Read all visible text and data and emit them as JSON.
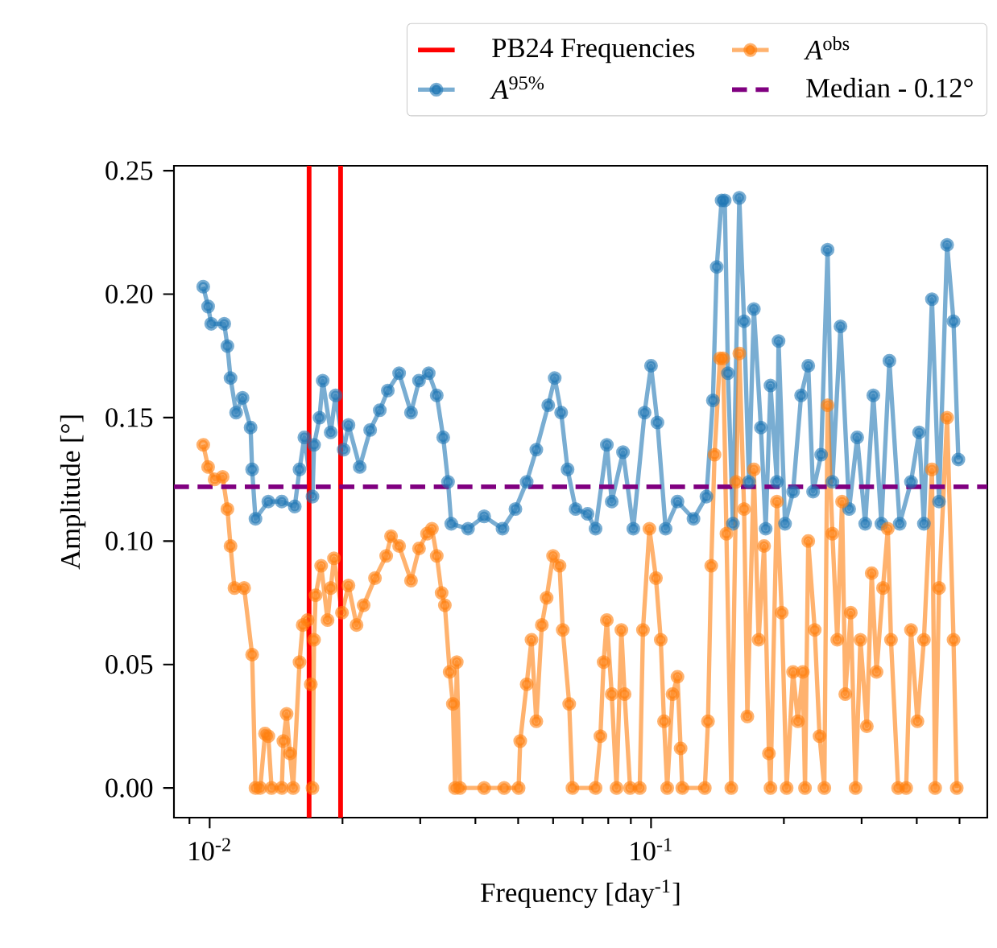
{
  "chart_data": {
    "type": "line",
    "xlabel": "Frequency [day$^{-1}$]",
    "ylabel": "Amplitude [°]",
    "log": "x",
    "marker": "circle",
    "line_style": "solid",
    "legend": "top",
    "xlim": [
      0.0083,
      0.578
    ],
    "ylim": [
      -0.012,
      0.252
    ],
    "xticks": [
      {
        "value": 0.01,
        "label": "10$^{-2}$"
      },
      {
        "value": 0.1,
        "label": "10$^{-1}$"
      }
    ],
    "yticks": [
      {
        "value": 0,
        "label": "0.00"
      },
      0.05,
      {
        "value": 0.1,
        "label": "0.10"
      },
      0.15,
      {
        "value": 0.2,
        "label": "0.20"
      },
      0.25
    ],
    "series": [
      {
        "name": "*A*$^{95%}$",
        "color": "#1f77b4",
        "x": [
          0.00967,
          0.00992,
          0.01008,
          0.01079,
          0.01097,
          0.01115,
          0.01148,
          0.01187,
          0.01238,
          0.01248,
          0.0127,
          0.01358,
          0.01457,
          0.01559,
          0.01598,
          0.01639,
          0.0171,
          0.01724,
          0.01774,
          0.01804,
          0.01881,
          0.01929,
          0.02012,
          0.02063,
          0.02188,
          0.0231,
          0.02429,
          0.02533,
          0.02687,
          0.02859,
          0.02981,
          0.03136,
          0.0327,
          0.03382,
          0.03468,
          0.03527,
          0.03849,
          0.04187,
          0.04608,
          0.04929,
          0.05227,
          0.05497,
          0.0585,
          0.06051,
          0.06257,
          0.06471,
          0.06749,
          0.07181,
          0.07489,
          0.07943,
          0.08146,
          0.0864,
          0.09117,
          0.09669,
          0.1,
          0.1034,
          0.1079,
          0.1148,
          0.1248,
          0.1335,
          0.1381,
          0.1409,
          0.1445,
          0.1469,
          0.1494,
          0.1533,
          0.1585,
          0.1625,
          0.1667,
          0.171,
          0.1774,
          0.1819,
          0.1865,
          0.1929,
          0.1945,
          0.2012,
          0.2098,
          0.2188,
          0.2271,
          0.2329,
          0.2429,
          0.2512,
          0.2576,
          0.2687,
          0.2811,
          0.2932,
          0.3057,
          0.3189,
          0.3326,
          0.3468,
          0.366,
          0.3882,
          0.4049,
          0.4152,
          0.433,
          0.4493,
          0.4686,
          0.4846,
          0.497
        ],
        "values": [
          0.203,
          0.195,
          0.188,
          0.188,
          0.179,
          0.166,
          0.152,
          0.158,
          0.146,
          0.129,
          0.109,
          0.116,
          0.116,
          0.114,
          0.129,
          0.142,
          0.118,
          0.139,
          0.15,
          0.165,
          0.144,
          0.159,
          0.137,
          0.147,
          0.13,
          0.145,
          0.153,
          0.161,
          0.168,
          0.152,
          0.165,
          0.168,
          0.159,
          0.142,
          0.124,
          0.107,
          0.105,
          0.11,
          0.105,
          0.113,
          0.124,
          0.137,
          0.155,
          0.166,
          0.152,
          0.129,
          0.113,
          0.111,
          0.105,
          0.139,
          0.116,
          0.136,
          0.105,
          0.152,
          0.171,
          0.148,
          0.105,
          0.116,
          0.109,
          0.118,
          0.157,
          0.211,
          0.238,
          0.238,
          0.168,
          0.107,
          0.239,
          0.189,
          0.124,
          0.194,
          0.146,
          0.105,
          0.163,
          0.124,
          0.181,
          0.107,
          0.12,
          0.159,
          0.171,
          0.12,
          0.135,
          0.218,
          0.124,
          0.187,
          0.113,
          0.142,
          0.107,
          0.159,
          0.107,
          0.173,
          0.107,
          0.124,
          0.144,
          0.107,
          0.198,
          0.116,
          0.22,
          0.189,
          0.133
        ]
      },
      {
        "name": "*A*$^{obs}$",
        "color": "#ff7f0e",
        "x": [
          0.00967,
          0.00992,
          0.01026,
          0.0107,
          0.01097,
          0.01115,
          0.01138,
          0.01197,
          0.01248,
          0.0127,
          0.01302,
          0.01335,
          0.01358,
          0.01381,
          0.01457,
          0.01469,
          0.01494,
          0.0152,
          0.01546,
          0.01598,
          0.01625,
          0.01667,
          0.01695,
          0.0171,
          0.01724,
          0.01738,
          0.01789,
          0.0185,
          0.01881,
          0.01913,
          0.01995,
          0.02063,
          0.02152,
          0.02233,
          0.02369,
          0.02512,
          0.02576,
          0.02687,
          0.02859,
          0.02981,
          0.03109,
          0.03189,
          0.0327,
          0.03354,
          0.03411,
          0.03498,
          0.03557,
          0.03599,
          0.0363,
          0.03691,
          0.04187,
          0.04648,
          0.05012,
          0.05054,
          0.05227,
          0.0536,
          0.05497,
          0.05657,
          0.05801,
          0.05999,
          0.06205,
          0.0631,
          0.06526,
          0.06636,
          0.07489,
          0.0768,
          0.0781,
          0.07943,
          0.08146,
          0.08354,
          0.08567,
          0.08712,
          0.08965,
          0.09429,
          0.09589,
          0.09916,
          0.1026,
          0.1052,
          0.107,
          0.1088,
          0.1119,
          0.1148,
          0.1167,
          0.1177,
          0.1324,
          0.1346,
          0.1369,
          0.1393,
          0.1433,
          0.1457,
          0.1482,
          0.152,
          0.1559,
          0.1585,
          0.1625,
          0.1653,
          0.171,
          0.1753,
          0.1804,
          0.185,
          0.1865,
          0.1929,
          0.1978,
          0.2029,
          0.2098,
          0.2152,
          0.2207,
          0.2233,
          0.2271,
          0.2349,
          0.2409,
          0.247,
          0.2512,
          0.2576,
          0.2642,
          0.2709,
          0.2755,
          0.2835,
          0.2907,
          0.2981,
          0.3083,
          0.3162,
          0.3243,
          0.3354,
          0.3439,
          0.3497,
          0.363,
          0.3785,
          0.3882,
          0.4014,
          0.4152,
          0.433,
          0.4403,
          0.4493,
          0.4686,
          0.4846,
          0.4928
        ],
        "values": [
          0.139,
          0.13,
          0.125,
          0.126,
          0.113,
          0.098,
          0.081,
          0.081,
          0.054,
          0,
          0,
          0.022,
          0.021,
          0,
          0,
          0.019,
          0.03,
          0.014,
          0,
          0.051,
          0.066,
          0.068,
          0.042,
          0,
          0.06,
          0.078,
          0.09,
          0.068,
          0.081,
          0.093,
          0.071,
          0.082,
          0.066,
          0.074,
          0.085,
          0.094,
          0.102,
          0.098,
          0.084,
          0.097,
          0.103,
          0.105,
          0.094,
          0.079,
          0.074,
          0.047,
          0.034,
          0,
          0.051,
          0,
          0,
          0,
          0,
          0.019,
          0.042,
          0.06,
          0.027,
          0.066,
          0.077,
          0.094,
          0.09,
          0.064,
          0.034,
          0,
          0,
          0.021,
          0.051,
          0.068,
          0.038,
          0,
          0.064,
          0.038,
          0,
          0,
          0.064,
          0.105,
          0.085,
          0.06,
          0.027,
          0,
          0.038,
          0.045,
          0.016,
          0,
          0,
          0.027,
          0.09,
          0.135,
          0.174,
          0.174,
          0.103,
          0,
          0.124,
          0.176,
          0.113,
          0.029,
          0.129,
          0.06,
          0.098,
          0.014,
          0,
          0.116,
          0.071,
          0,
          0.047,
          0.027,
          0.047,
          0,
          0.1,
          0.064,
          0.021,
          0,
          0.155,
          0.103,
          0.06,
          0.116,
          0.038,
          0.071,
          0,
          0.06,
          0.025,
          0.087,
          0.047,
          0.081,
          0.105,
          0.06,
          0,
          0,
          0.064,
          0.027,
          0.06,
          0.129,
          0,
          0.081,
          0.15,
          0.06,
          0
        ]
      }
    ],
    "ref_lines": [
      {
        "axis": "x",
        "value": 0.0168,
        "label": "PB24 Frequencies",
        "color": "#ff0000",
        "line_style": "solid"
      },
      {
        "axis": "x",
        "value": 0.0198,
        "color": "#ff0000",
        "line_style": "solid"
      },
      {
        "axis": "y",
        "value": 0.122,
        "label": "Median - 0.12°",
        "color": "#800080",
        "line_style": "dashed"
      }
    ]
  }
}
